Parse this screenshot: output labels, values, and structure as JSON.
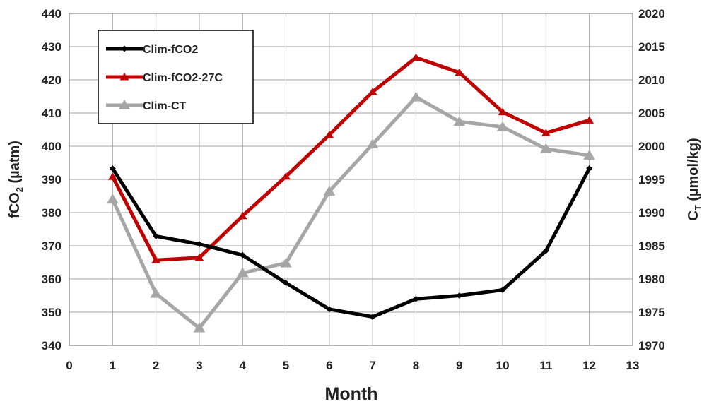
{
  "chart_data": {
    "type": "line",
    "xlabel": "Month",
    "ylabel_left": {
      "main": "fCO",
      "sub": "2",
      "rest": " (µatm)"
    },
    "ylabel_right": {
      "main": "C",
      "sub": "T",
      "rest": " (µmol/kg)"
    },
    "xlim": [
      0,
      13
    ],
    "ylim_left": [
      340,
      440
    ],
    "ylim_right": [
      1970,
      2020
    ],
    "x_ticks": [
      "0",
      "1",
      "2",
      "3",
      "4",
      "5",
      "6",
      "7",
      "8",
      "9",
      "10",
      "11",
      "12",
      "13"
    ],
    "y_left_ticks": [
      "340",
      "350",
      "360",
      "370",
      "380",
      "390",
      "400",
      "410",
      "420",
      "430",
      "440"
    ],
    "y_right_ticks": [
      "1970",
      "1975",
      "1980",
      "1985",
      "1990",
      "1995",
      "2000",
      "2005",
      "2010",
      "2015",
      "2020"
    ],
    "grid": true,
    "legend_position": "top-left",
    "series": [
      {
        "name": "Clim-fCO2",
        "axis": "left",
        "color": "#000000",
        "marker": "diamond",
        "x": [
          1,
          2,
          3,
          4,
          5,
          6,
          7,
          8,
          9,
          10,
          11,
          12
        ],
        "y": [
          393.3,
          372.9,
          370.5,
          367.2,
          358.8,
          350.9,
          348.6,
          354.0,
          355.0,
          356.7,
          368.5,
          393.3
        ]
      },
      {
        "name": "Clim-fCO2-27C",
        "axis": "left",
        "color": "#c00000",
        "marker": "triangle",
        "x": [
          1,
          2,
          3,
          4,
          5,
          6,
          7,
          8,
          9,
          10,
          11,
          12
        ],
        "y": [
          390.8,
          365.7,
          366.4,
          379.0,
          390.9,
          403.4,
          416.4,
          426.7,
          422.2,
          410.3,
          404.0,
          407.8
        ]
      },
      {
        "name": "Clim-CT",
        "axis": "right",
        "color": "#a6a6a6",
        "marker": "triangle",
        "x": [
          1,
          2,
          3,
          4,
          5,
          6,
          7,
          8,
          9,
          10,
          11,
          12
        ],
        "y": [
          1992.0,
          1977.8,
          1972.6,
          1980.9,
          1982.4,
          1993.2,
          2000.3,
          2007.4,
          2003.7,
          2002.9,
          1999.6,
          1998.6
        ]
      }
    ]
  }
}
